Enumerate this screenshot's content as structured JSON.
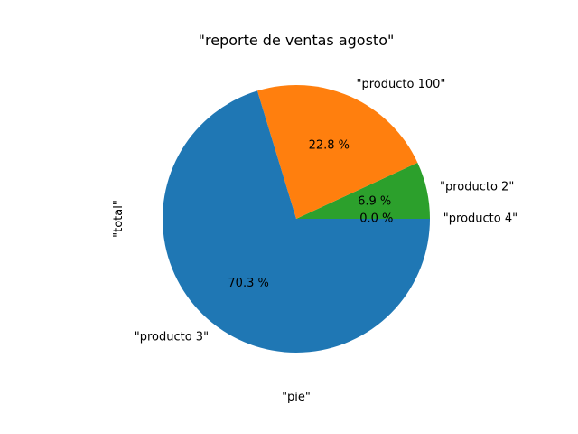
{
  "chart_data": {
    "type": "pie",
    "title": "\"reporte de ventas agosto\"",
    "xlabel": "\"pie\"",
    "ylabel": "\"total\"",
    "start_angle_deg": 0,
    "direction": "counterclockwise",
    "slices": [
      {
        "label": "\"producto 4\"",
        "value": 0.0,
        "pct_label": "0.0 %",
        "color": "#d62728"
      },
      {
        "label": "\"producto 2\"",
        "value": 6.9,
        "pct_label": "6.9 %",
        "color": "#2ca02c"
      },
      {
        "label": "\"producto 100\"",
        "value": 22.8,
        "pct_label": "22.8 %",
        "color": "#ff7f0e"
      },
      {
        "label": "\"producto 3\"",
        "value": 70.3,
        "pct_label": "70.3 %",
        "color": "#1f77b4"
      }
    ]
  }
}
